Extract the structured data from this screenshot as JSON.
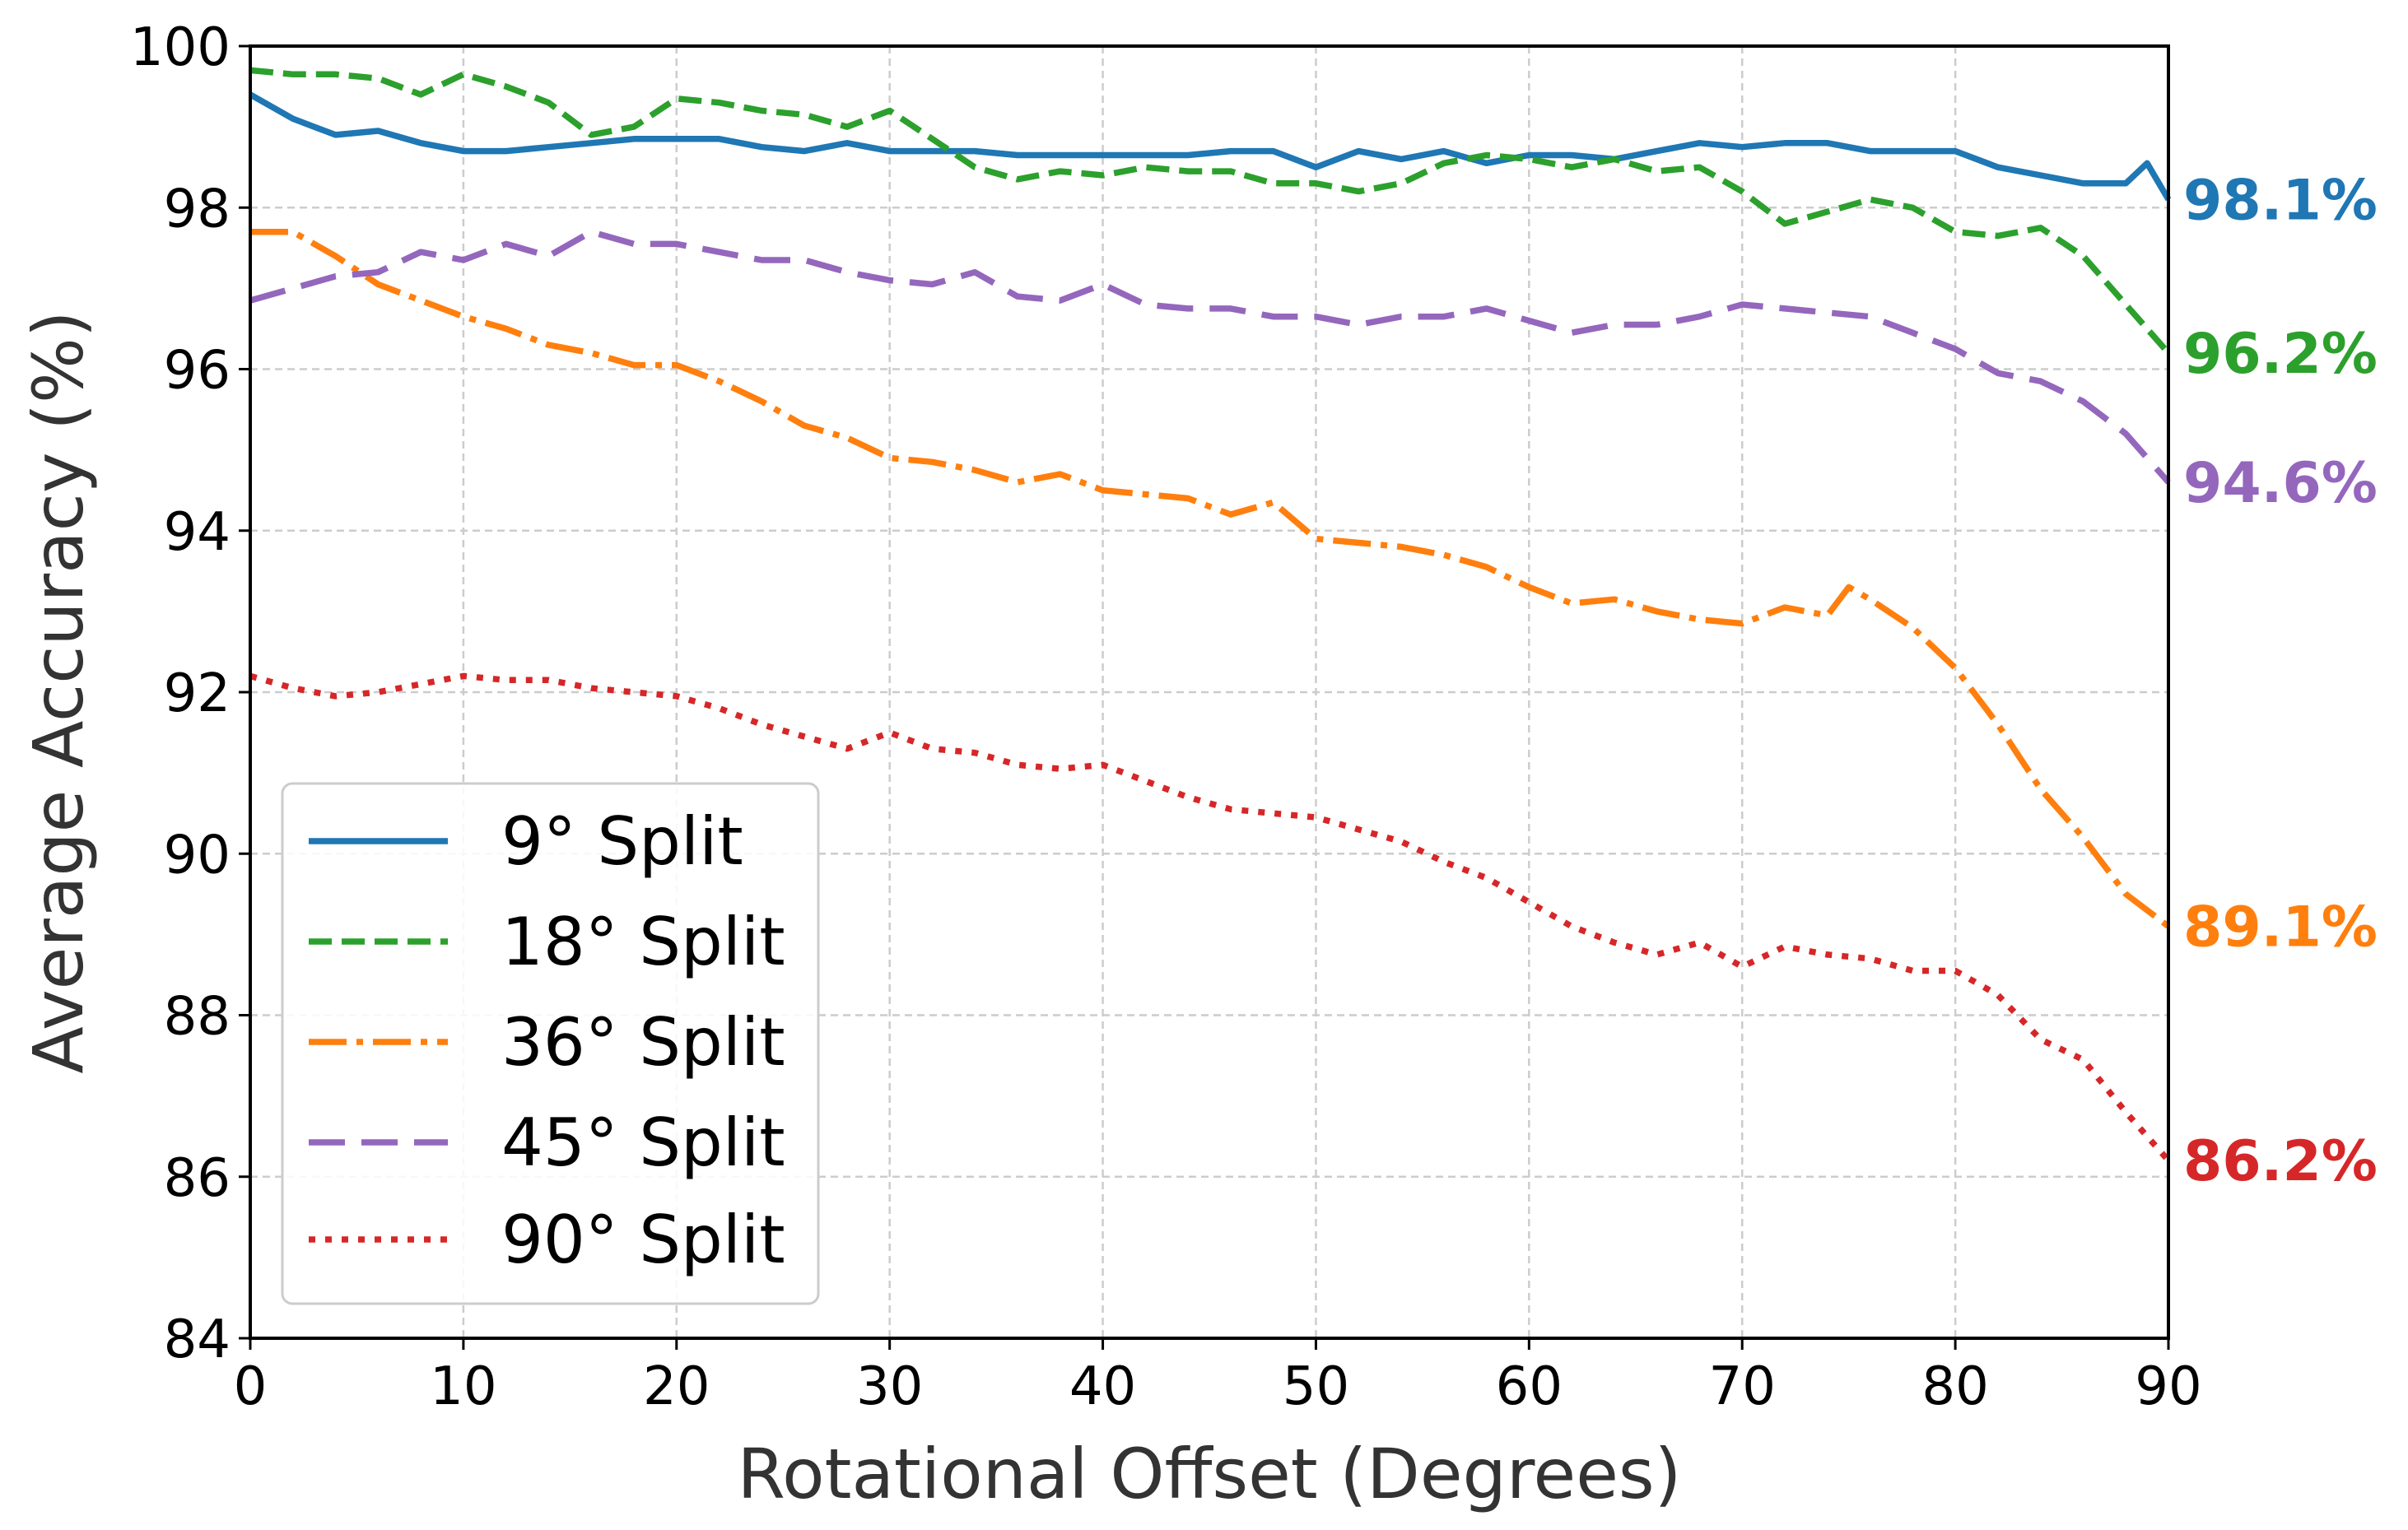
{
  "chart_data": {
    "type": "line",
    "title": "",
    "xlabel": "Rotational Offset (Degrees)",
    "ylabel": "Average Accuracy (%)",
    "xlim": [
      0,
      90
    ],
    "ylim": [
      84,
      100
    ],
    "xticks": [
      0,
      10,
      20,
      30,
      40,
      50,
      60,
      70,
      80,
      90
    ],
    "yticks": [
      84,
      86,
      88,
      90,
      92,
      94,
      96,
      98,
      100
    ],
    "grid": true,
    "legend_position": "lower-left",
    "series": [
      {
        "name": "9° Split",
        "color": "#1f77b4",
        "style": "solid",
        "end_label": "98.1%",
        "x": [
          0,
          2,
          4,
          6,
          8,
          10,
          12,
          14,
          16,
          18,
          20,
          22,
          24,
          26,
          28,
          30,
          32,
          34,
          36,
          38,
          40,
          42,
          44,
          46,
          48,
          50,
          52,
          54,
          56,
          58,
          60,
          62,
          64,
          66,
          68,
          70,
          72,
          74,
          76,
          78,
          80,
          82,
          84,
          86,
          88,
          89,
          90
        ],
        "y": [
          99.4,
          99.1,
          98.9,
          98.95,
          98.8,
          98.7,
          98.7,
          98.75,
          98.8,
          98.85,
          98.85,
          98.85,
          98.75,
          98.7,
          98.8,
          98.7,
          98.7,
          98.7,
          98.65,
          98.65,
          98.65,
          98.65,
          98.65,
          98.7,
          98.7,
          98.5,
          98.7,
          98.6,
          98.7,
          98.55,
          98.65,
          98.65,
          98.6,
          98.7,
          98.8,
          98.75,
          98.8,
          98.8,
          98.7,
          98.7,
          98.7,
          98.5,
          98.4,
          98.3,
          98.3,
          98.55,
          98.1
        ]
      },
      {
        "name": "18° Split",
        "color": "#2ca02c",
        "style": "dashed",
        "end_label": "96.2%",
        "x": [
          0,
          2,
          4,
          6,
          8,
          10,
          12,
          14,
          16,
          18,
          20,
          22,
          24,
          26,
          28,
          30,
          32,
          34,
          36,
          38,
          40,
          42,
          44,
          46,
          48,
          50,
          52,
          54,
          56,
          58,
          60,
          62,
          64,
          66,
          68,
          70,
          72,
          74,
          76,
          78,
          80,
          82,
          84,
          86,
          88,
          90
        ],
        "y": [
          99.7,
          99.65,
          99.65,
          99.6,
          99.4,
          99.65,
          99.5,
          99.3,
          98.9,
          99.0,
          99.35,
          99.3,
          99.2,
          99.15,
          99.0,
          99.2,
          98.85,
          98.5,
          98.35,
          98.45,
          98.4,
          98.5,
          98.45,
          98.45,
          98.3,
          98.3,
          98.2,
          98.3,
          98.55,
          98.65,
          98.6,
          98.5,
          98.6,
          98.45,
          98.5,
          98.2,
          97.8,
          97.95,
          98.1,
          98.0,
          97.7,
          97.65,
          97.75,
          97.4,
          96.8,
          96.2
        ]
      },
      {
        "name": "36° Split",
        "color": "#ff7f0e",
        "style": "dashdot",
        "end_label": "89.1%",
        "x": [
          0,
          2,
          4,
          6,
          8,
          10,
          12,
          14,
          16,
          18,
          20,
          22,
          24,
          26,
          28,
          30,
          32,
          34,
          36,
          38,
          40,
          42,
          44,
          46,
          48,
          50,
          52,
          54,
          56,
          58,
          60,
          62,
          64,
          66,
          68,
          70,
          72,
          74,
          75,
          76,
          78,
          80,
          82,
          84,
          86,
          88,
          90
        ],
        "y": [
          97.7,
          97.7,
          97.4,
          97.05,
          96.85,
          96.65,
          96.5,
          96.3,
          96.2,
          96.05,
          96.05,
          95.85,
          95.6,
          95.3,
          95.15,
          94.9,
          94.85,
          94.75,
          94.6,
          94.7,
          94.5,
          94.45,
          94.4,
          94.2,
          94.35,
          93.9,
          93.85,
          93.8,
          93.7,
          93.55,
          93.3,
          93.1,
          93.15,
          93.0,
          92.9,
          92.85,
          93.05,
          92.95,
          93.3,
          93.15,
          92.8,
          92.3,
          91.6,
          90.8,
          90.2,
          89.5,
          89.1
        ]
      },
      {
        "name": "45° Split",
        "color": "#9467bd",
        "style": "longdash",
        "end_label": "94.6%",
        "x": [
          0,
          2,
          4,
          6,
          8,
          10,
          12,
          14,
          16,
          18,
          20,
          22,
          24,
          26,
          28,
          30,
          32,
          34,
          36,
          38,
          40,
          42,
          44,
          46,
          48,
          50,
          52,
          54,
          56,
          58,
          60,
          62,
          64,
          66,
          68,
          70,
          72,
          74,
          76,
          78,
          80,
          82,
          84,
          86,
          88,
          90
        ],
        "y": [
          96.85,
          97.0,
          97.15,
          97.2,
          97.45,
          97.35,
          97.55,
          97.4,
          97.7,
          97.55,
          97.55,
          97.45,
          97.35,
          97.35,
          97.2,
          97.1,
          97.05,
          97.2,
          96.9,
          96.85,
          97.05,
          96.8,
          96.75,
          96.75,
          96.65,
          96.65,
          96.55,
          96.65,
          96.65,
          96.75,
          96.6,
          96.45,
          96.55,
          96.55,
          96.65,
          96.8,
          96.75,
          96.7,
          96.65,
          96.45,
          96.25,
          95.95,
          95.85,
          95.6,
          95.2,
          94.6
        ]
      },
      {
        "name": "90° Split",
        "color": "#d62728",
        "style": "dotted",
        "end_label": "86.2%",
        "x": [
          0,
          2,
          4,
          6,
          8,
          10,
          12,
          14,
          16,
          18,
          20,
          22,
          24,
          26,
          28,
          30,
          32,
          34,
          36,
          38,
          40,
          42,
          44,
          46,
          48,
          50,
          52,
          54,
          56,
          58,
          60,
          62,
          64,
          66,
          68,
          70,
          72,
          74,
          76,
          78,
          80,
          82,
          84,
          86,
          88,
          90
        ],
        "y": [
          92.2,
          92.05,
          91.95,
          92.0,
          92.1,
          92.2,
          92.15,
          92.15,
          92.05,
          92.0,
          91.95,
          91.8,
          91.6,
          91.45,
          91.3,
          91.5,
          91.3,
          91.25,
          91.1,
          91.05,
          91.1,
          90.9,
          90.7,
          90.55,
          90.5,
          90.45,
          90.3,
          90.15,
          89.9,
          89.7,
          89.4,
          89.1,
          88.9,
          88.75,
          88.9,
          88.6,
          88.85,
          88.75,
          88.7,
          88.55,
          88.55,
          88.25,
          87.7,
          87.45,
          86.8,
          86.2
        ]
      }
    ]
  }
}
